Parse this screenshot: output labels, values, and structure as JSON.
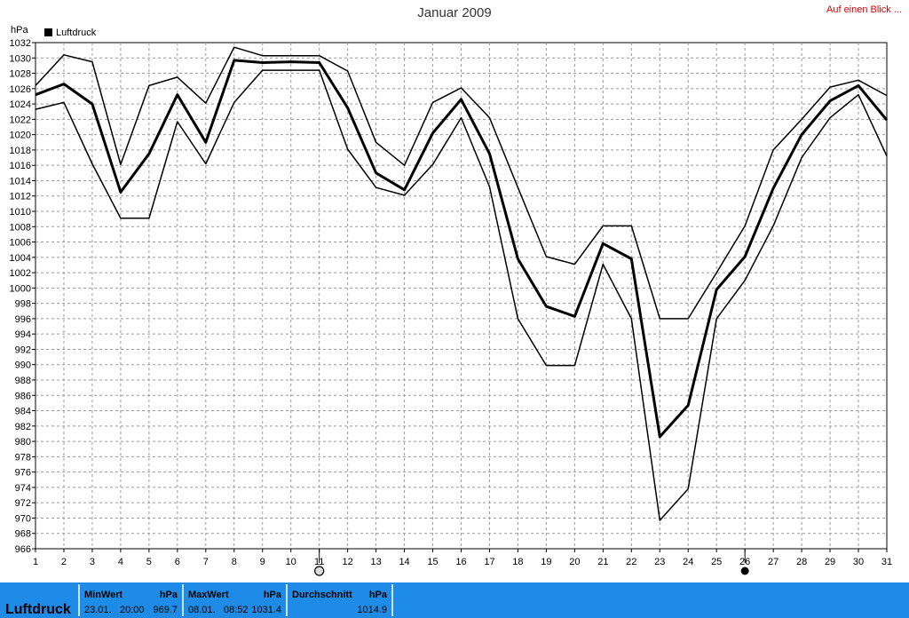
{
  "header": {
    "title": "Januar 2009",
    "link": "Auf einen Blick ..."
  },
  "legend": {
    "label": "Luftdruck"
  },
  "footer": {
    "label": "Luftdruck",
    "min": {
      "header": "MinWert",
      "unit": "hPa",
      "date": "23.01.",
      "time": "20:00",
      "value": "969.7"
    },
    "max": {
      "header": "MaxWert",
      "unit": "hPa",
      "date": "08.01.",
      "time": "08:52",
      "value": "1031.4"
    },
    "avg": {
      "header": "Durchschnitt",
      "unit": "hPa",
      "value": "1014.9"
    }
  },
  "colors": {
    "footer": "#1e8be6",
    "grid": "#9a9a9a",
    "line": "#000000",
    "link": "#e00000"
  },
  "chart_data": {
    "type": "line",
    "title": "Januar 2009",
    "ylabel": "hPa",
    "xlabel": "",
    "ylim": [
      966,
      1032
    ],
    "y_step": 2,
    "x": [
      1,
      2,
      3,
      4,
      5,
      6,
      7,
      8,
      9,
      10,
      11,
      12,
      13,
      14,
      15,
      16,
      17,
      18,
      19,
      20,
      21,
      22,
      23,
      24,
      25,
      26,
      27,
      28,
      29,
      30,
      31
    ],
    "grid": true,
    "legend_position": "top-left",
    "series": [
      {
        "name": "Luftdruck",
        "role": "max",
        "values": [
          1026.4,
          1030.4,
          1029.5,
          1016.1,
          1026.4,
          1027.5,
          1024.1,
          1031.4,
          1030.3,
          1030.3,
          1030.3,
          1028.3,
          1019.0,
          1016.0,
          1024.2,
          1026.1,
          1022.2,
          1013.1,
          1004.1,
          1003.1,
          1008.1,
          1008.1,
          996.0,
          996.0,
          1002.0,
          1008.1,
          1018.0,
          1022.0,
          1026.2,
          1027.1,
          1025.1
        ]
      },
      {
        "name": "Luftdruck",
        "role": "mean",
        "values": [
          1025.2,
          1026.6,
          1024.0,
          1012.5,
          1017.5,
          1025.2,
          1019.0,
          1029.7,
          1029.4,
          1029.5,
          1029.4,
          1023.5,
          1015.0,
          1012.8,
          1020.2,
          1024.6,
          1017.5,
          1003.8,
          997.6,
          996.3,
          1005.8,
          1003.8,
          980.6,
          984.7,
          999.8,
          1004.1,
          1013.0,
          1020.0,
          1024.4,
          1026.4,
          1021.9
        ]
      },
      {
        "name": "Luftdruck",
        "role": "min",
        "values": [
          1023.3,
          1024.2,
          1016.2,
          1009.1,
          1009.1,
          1021.7,
          1016.2,
          1024.2,
          1028.4,
          1028.4,
          1028.4,
          1018.1,
          1013.1,
          1012.1,
          1016.1,
          1022.2,
          1013.2,
          996.0,
          989.9,
          989.9,
          1003.1,
          996.0,
          969.7,
          973.8,
          996.0,
          1001.0,
          1008.1,
          1017.0,
          1022.2,
          1025.2,
          1017.2
        ]
      }
    ],
    "markers": [
      {
        "x": 11,
        "symbol": "open-circle"
      },
      {
        "x": 26,
        "symbol": "filled-circle"
      }
    ]
  }
}
